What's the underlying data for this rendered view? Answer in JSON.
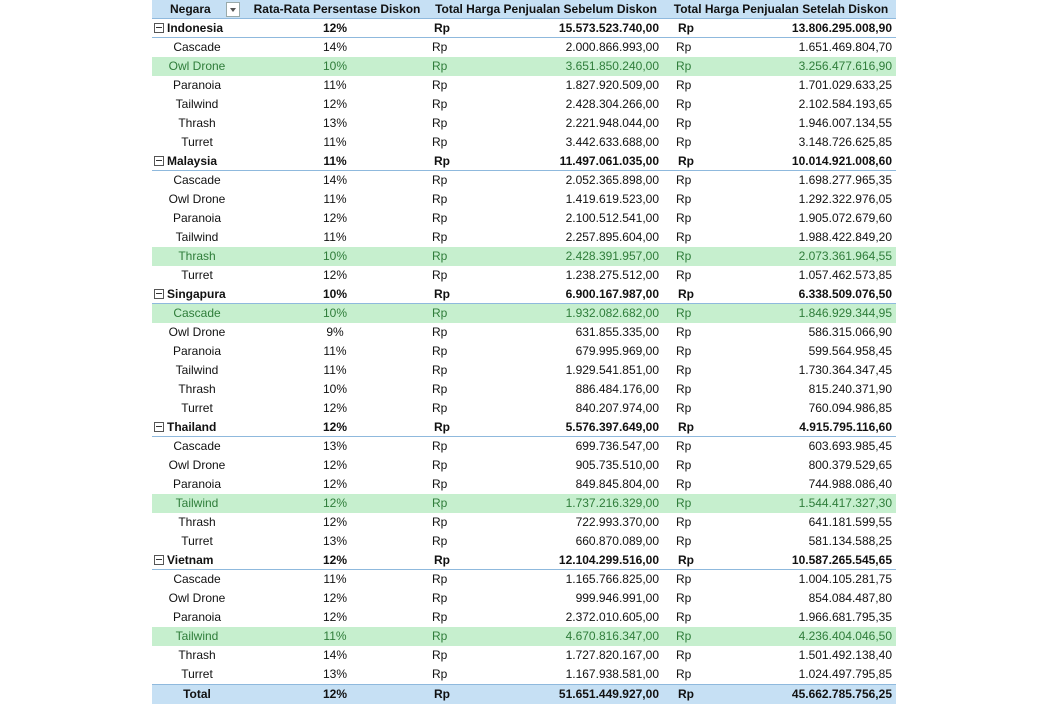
{
  "headers": {
    "country": "Negara",
    "avg_discount": "Rata-Rata Persentase Diskon",
    "before": "Total Harga Penjualan Sebelum Diskon",
    "after": "Total Harga Penjualan Setelah Diskon"
  },
  "currency": "Rp",
  "groups": [
    {
      "name": "Indonesia",
      "pct": "12%",
      "before": "15.573.523.740,00",
      "after": "13.806.295.008,90",
      "items": [
        {
          "name": "Cascade",
          "pct": "14%",
          "before": "2.000.866.993,00",
          "after": "1.651.469.804,70",
          "highlight": false
        },
        {
          "name": "Owl Drone",
          "pct": "10%",
          "before": "3.651.850.240,00",
          "after": "3.256.477.616,90",
          "highlight": true
        },
        {
          "name": "Paranoia",
          "pct": "11%",
          "before": "1.827.920.509,00",
          "after": "1.701.029.633,25",
          "highlight": false
        },
        {
          "name": "Tailwind",
          "pct": "12%",
          "before": "2.428.304.266,00",
          "after": "2.102.584.193,65",
          "highlight": false
        },
        {
          "name": "Thrash",
          "pct": "13%",
          "before": "2.221.948.044,00",
          "after": "1.946.007.134,55",
          "highlight": false
        },
        {
          "name": "Turret",
          "pct": "11%",
          "before": "3.442.633.688,00",
          "after": "3.148.726.625,85",
          "highlight": false
        }
      ]
    },
    {
      "name": "Malaysia",
      "pct": "11%",
      "before": "11.497.061.035,00",
      "after": "10.014.921.008,60",
      "items": [
        {
          "name": "Cascade",
          "pct": "14%",
          "before": "2.052.365.898,00",
          "after": "1.698.277.965,35",
          "highlight": false
        },
        {
          "name": "Owl Drone",
          "pct": "11%",
          "before": "1.419.619.523,00",
          "after": "1.292.322.976,05",
          "highlight": false
        },
        {
          "name": "Paranoia",
          "pct": "12%",
          "before": "2.100.512.541,00",
          "after": "1.905.072.679,60",
          "highlight": false
        },
        {
          "name": "Tailwind",
          "pct": "11%",
          "before": "2.257.895.604,00",
          "after": "1.988.422.849,20",
          "highlight": false
        },
        {
          "name": "Thrash",
          "pct": "10%",
          "before": "2.428.391.957,00",
          "after": "2.073.361.964,55",
          "highlight": true
        },
        {
          "name": "Turret",
          "pct": "12%",
          "before": "1.238.275.512,00",
          "after": "1.057.462.573,85",
          "highlight": false
        }
      ]
    },
    {
      "name": "Singapura",
      "pct": "10%",
      "before": "6.900.167.987,00",
      "after": "6.338.509.076,50",
      "items": [
        {
          "name": "Cascade",
          "pct": "10%",
          "before": "1.932.082.682,00",
          "after": "1.846.929.344,95",
          "highlight": true
        },
        {
          "name": "Owl Drone",
          "pct": "9%",
          "before": "631.855.335,00",
          "after": "586.315.066,90",
          "highlight": false
        },
        {
          "name": "Paranoia",
          "pct": "11%",
          "before": "679.995.969,00",
          "after": "599.564.958,45",
          "highlight": false
        },
        {
          "name": "Tailwind",
          "pct": "11%",
          "before": "1.929.541.851,00",
          "after": "1.730.364.347,45",
          "highlight": false
        },
        {
          "name": "Thrash",
          "pct": "10%",
          "before": "886.484.176,00",
          "after": "815.240.371,90",
          "highlight": false
        },
        {
          "name": "Turret",
          "pct": "12%",
          "before": "840.207.974,00",
          "after": "760.094.986,85",
          "highlight": false
        }
      ]
    },
    {
      "name": "Thailand",
      "pct": "12%",
      "before": "5.576.397.649,00",
      "after": "4.915.795.116,60",
      "items": [
        {
          "name": "Cascade",
          "pct": "13%",
          "before": "699.736.547,00",
          "after": "603.693.985,45",
          "highlight": false
        },
        {
          "name": "Owl Drone",
          "pct": "12%",
          "before": "905.735.510,00",
          "after": "800.379.529,65",
          "highlight": false
        },
        {
          "name": "Paranoia",
          "pct": "12%",
          "before": "849.845.804,00",
          "after": "744.988.086,40",
          "highlight": false
        },
        {
          "name": "Tailwind",
          "pct": "12%",
          "before": "1.737.216.329,00",
          "after": "1.544.417.327,30",
          "highlight": true
        },
        {
          "name": "Thrash",
          "pct": "12%",
          "before": "722.993.370,00",
          "after": "641.181.599,55",
          "highlight": false
        },
        {
          "name": "Turret",
          "pct": "13%",
          "before": "660.870.089,00",
          "after": "581.134.588,25",
          "highlight": false
        }
      ]
    },
    {
      "name": "Vietnam",
      "pct": "12%",
      "before": "12.104.299.516,00",
      "after": "10.587.265.545,65",
      "items": [
        {
          "name": "Cascade",
          "pct": "11%",
          "before": "1.165.766.825,00",
          "after": "1.004.105.281,75",
          "highlight": false
        },
        {
          "name": "Owl Drone",
          "pct": "12%",
          "before": "999.946.991,00",
          "after": "854.084.487,80",
          "highlight": false
        },
        {
          "name": "Paranoia",
          "pct": "12%",
          "before": "2.372.010.605,00",
          "after": "1.966.681.795,35",
          "highlight": false
        },
        {
          "name": "Tailwind",
          "pct": "11%",
          "before": "4.670.816.347,00",
          "after": "4.236.404.046,50",
          "highlight": true
        },
        {
          "name": "Thrash",
          "pct": "14%",
          "before": "1.727.820.167,00",
          "after": "1.501.492.138,40",
          "highlight": false
        },
        {
          "name": "Turret",
          "pct": "13%",
          "before": "1.167.938.581,00",
          "after": "1.024.497.795,85",
          "highlight": false
        }
      ]
    }
  ],
  "total": {
    "label": "Total",
    "pct": "12%",
    "before": "51.651.449.927,00",
    "after": "45.662.785.756,25"
  }
}
